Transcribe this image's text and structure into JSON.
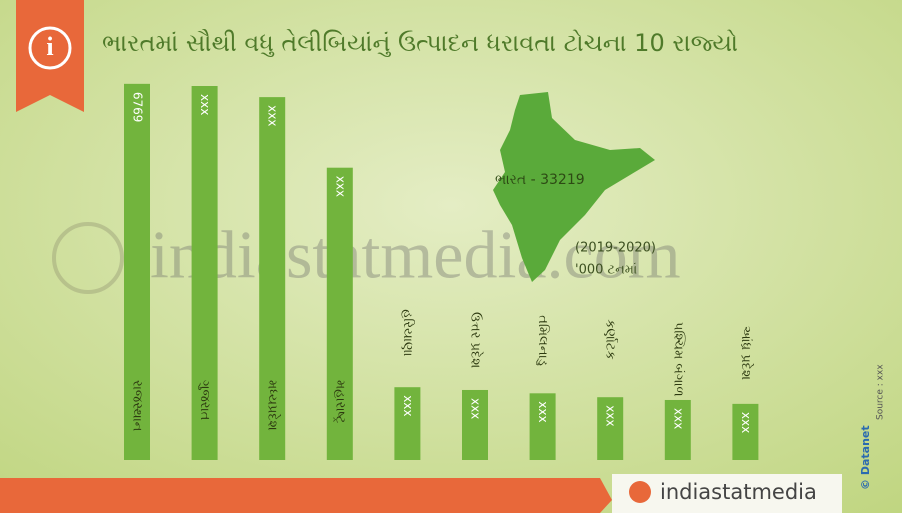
{
  "chart_data": {
    "type": "bar",
    "title": "ભારતમાં સૌથી વધુ તેલીબિયાંનું ઉત્પાદન ધરાવતા ટોચના 10 રાજ્યો",
    "categories": [
      "રાજસ્થાન",
      "ગુજરાત",
      "મધ્યપ્રદેશ",
      "મહારાષ્ટ્ર",
      "હરિયાણા",
      "ઉત્તર પ્રદેશ",
      "તમિલનાડુ",
      "કર્ણાટક",
      "પશ્ચિમ બંગાળ",
      "આંધ્ર પ્રદેશ"
    ],
    "values": [
      6769,
      6730,
      6530,
      5260,
      1310,
      1260,
      1200,
      1130,
      1080,
      1010
    ],
    "value_labels": [
      "6769",
      "xxx",
      "xxx",
      "xxx",
      "xxx",
      "xxx",
      "xxx",
      "xxx",
      "xxx",
      "xxx"
    ],
    "color": "#72b43d",
    "ylim": [
      0,
      7000
    ],
    "total_label": "ભારત - 33219",
    "period": "(2019-2020)",
    "unit": "'000 ટનમાં",
    "source": "Source : xxx",
    "credit": "© Datanet",
    "watermark": "indiastatmedia.com",
    "brand": "indiastatmedia"
  }
}
